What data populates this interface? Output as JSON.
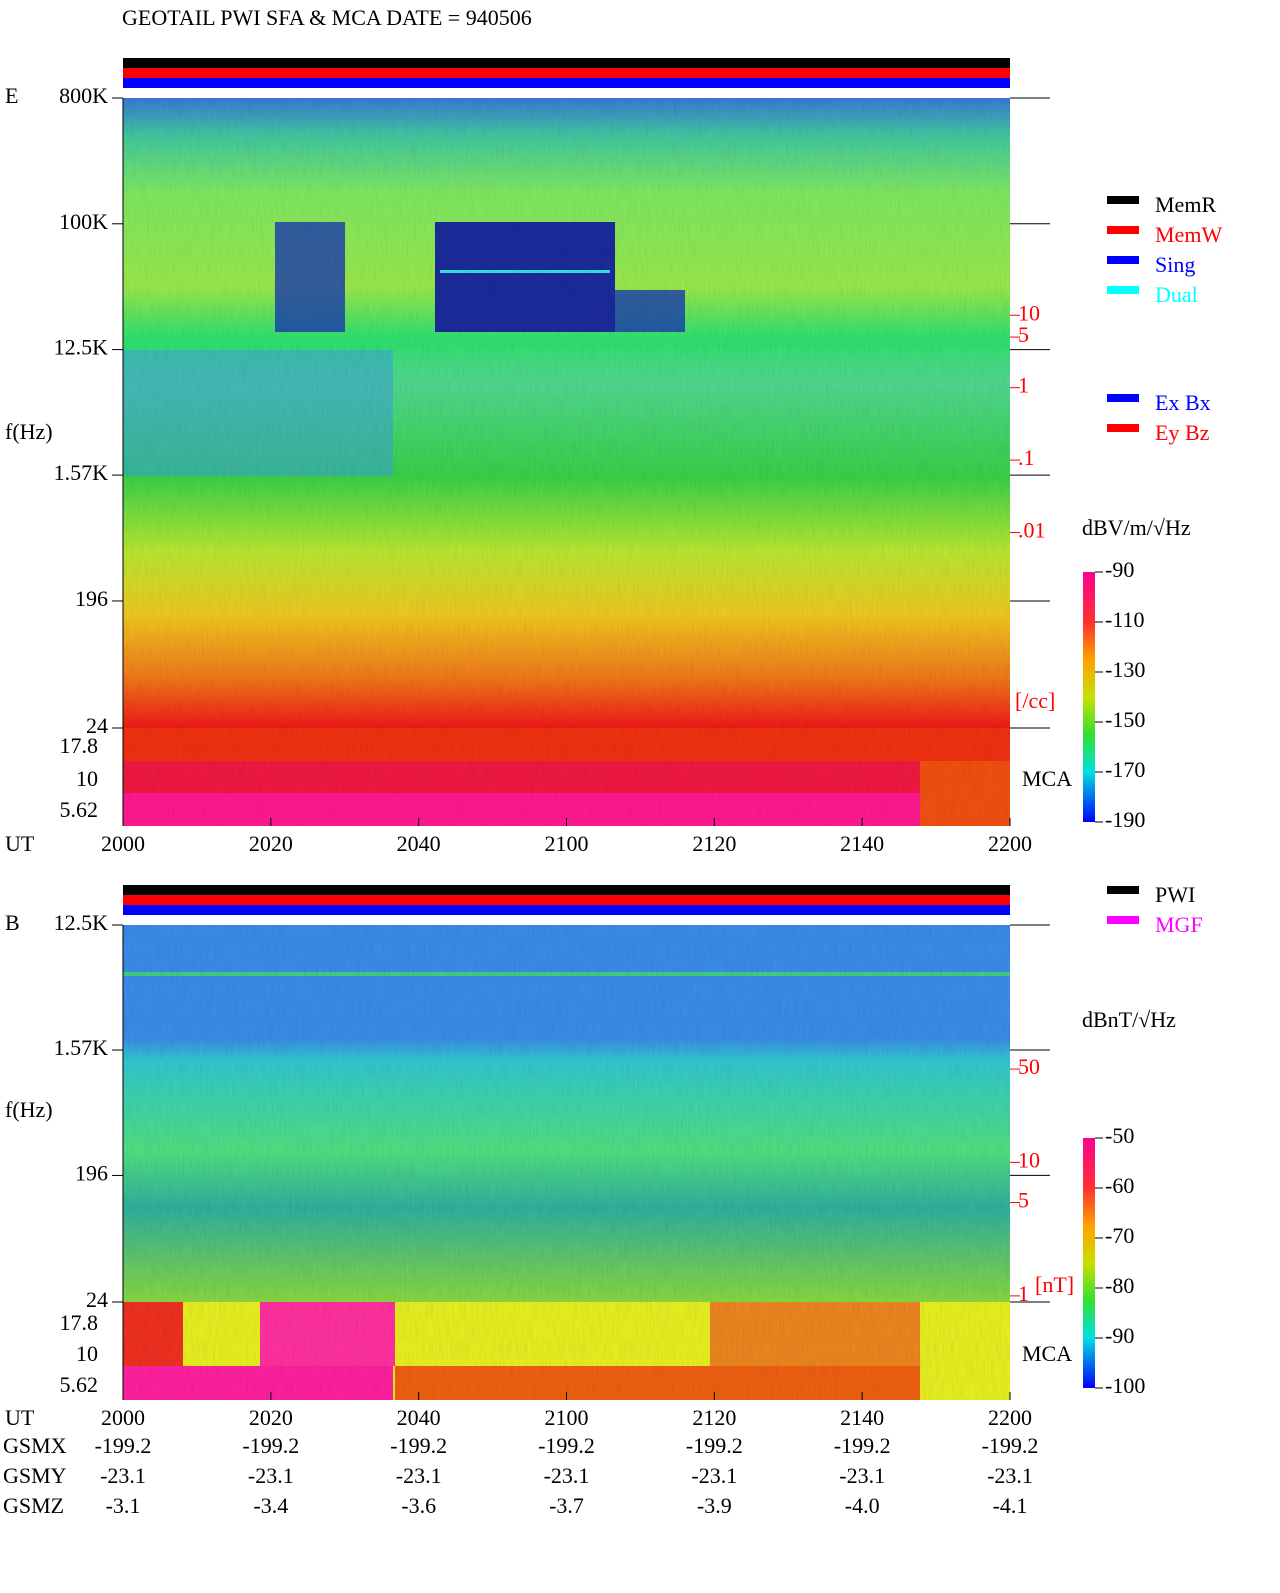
{
  "title": "GEOTAIL  PWI SFA & MCA   DATE = 940506",
  "chart_data": [
    {
      "type": "spectrogram",
      "panel_label": "E",
      "ylabel": "f(Hz)",
      "xlabel": "UT",
      "log_y": true,
      "categories": [
        "2000",
        "2020",
        "2040",
        "2100",
        "2120",
        "2140",
        "2200"
      ],
      "ylim": [
        24,
        800000
      ],
      "yticks": [
        {
          "value": 800000,
          "label": "800K"
        },
        {
          "value": 100000,
          "label": "100K"
        },
        {
          "value": 12500,
          "label": "12.5K"
        },
        {
          "value": 1570,
          "label": "1.57K"
        },
        196,
        24
      ],
      "mca_channels": [
        17.8,
        10,
        5.62
      ],
      "mca_label": "MCA",
      "y2label": "[/cc]",
      "y2lim": [
        2e-05,
        10000
      ],
      "y2ticks": [
        10,
        5,
        1,
        {
          "value": 0.1,
          "label": ".1"
        },
        {
          "value": 0.01,
          "label": ".01"
        }
      ],
      "colorbar": {
        "label": "dBV/m/√Hz",
        "lim": [
          -190,
          -90
        ],
        "ticks": [
          -90,
          -110,
          -130,
          -150,
          -170,
          -190
        ]
      },
      "legends": [
        [
          {
            "name": "MemR",
            "color": "#000000"
          },
          {
            "name": "MemW",
            "color": "#ff0000"
          },
          {
            "name": "Sing",
            "color": "#0000ff"
          },
          {
            "name": "Dual",
            "color": "#00ffff"
          }
        ],
        [
          {
            "name": "Ex Bx",
            "color": "#0000ff"
          },
          {
            "name": "Ey Bz",
            "color": "#ff0000"
          }
        ]
      ]
    },
    {
      "type": "spectrogram",
      "panel_label": "B",
      "ylabel": "f(Hz)",
      "xlabel": "UT",
      "log_y": true,
      "categories": [
        "2000",
        "2020",
        "2040",
        "2100",
        "2120",
        "2140",
        "2200"
      ],
      "ylim": [
        24,
        12500
      ],
      "yticks": [
        {
          "value": 12500,
          "label": "12.5K"
        },
        {
          "value": 1570,
          "label": "1.57K"
        },
        196,
        24
      ],
      "mca_channels": [
        17.8,
        10,
        5.62
      ],
      "mca_label": "MCA",
      "y2label": "[nT]",
      "y2lim": [
        0.9,
        600
      ],
      "y2ticks": [
        50,
        10,
        5,
        1
      ],
      "colorbar": {
        "label": "dBnT/√Hz",
        "lim": [
          -100,
          -50
        ],
        "ticks": [
          -50,
          -60,
          -70,
          -80,
          -90,
          -100
        ]
      },
      "legends": [
        [
          {
            "name": "PWI",
            "color": "#000000"
          },
          {
            "name": "MGF",
            "color": "#ff00ff"
          }
        ]
      ]
    }
  ],
  "orbit": {
    "rows": [
      {
        "label": "GSMX",
        "values": [
          "-199.2",
          "-199.2",
          "-199.2",
          "-199.2",
          "-199.2",
          "-199.2",
          "-199.2"
        ]
      },
      {
        "label": "GSMY",
        "values": [
          "-23.1",
          "-23.1",
          "-23.1",
          "-23.1",
          "-23.1",
          "-23.1",
          "-23.1"
        ]
      },
      {
        "label": "GSMZ",
        "values": [
          "-3.1",
          "-3.4",
          "-3.6",
          "-3.7",
          "-3.9",
          "-4.0",
          "-4.1"
        ]
      }
    ]
  }
}
